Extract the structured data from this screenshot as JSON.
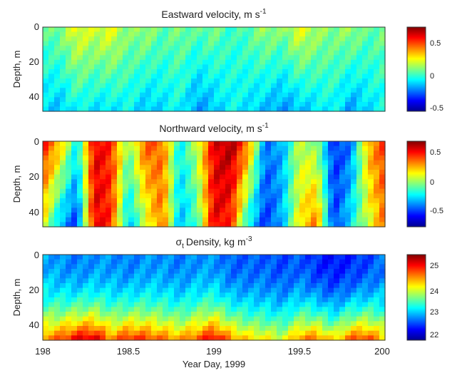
{
  "chart_data": [
    {
      "type": "heatmap",
      "title": "Eastward velocity, m s",
      "title_sup": "-1",
      "ylabel": "Depth, m",
      "ylim": [
        0,
        48
      ],
      "yticks": [
        "0",
        "20",
        "40"
      ],
      "xlim": [
        198,
        200
      ],
      "colorbar": {
        "range": [
          -0.55,
          0.75
        ],
        "ticks": [
          "0.5",
          "0",
          "-0.5"
        ],
        "tick_values": [
          0.5,
          0,
          -0.5
        ]
      },
      "colormap": "jet",
      "time": [
        198.0,
        198.1,
        198.2,
        198.3,
        198.4,
        198.5,
        198.6,
        198.7,
        198.8,
        198.9,
        199.0,
        199.1,
        199.2,
        199.3,
        199.4,
        199.5,
        199.6,
        199.7,
        199.8,
        199.9,
        200.0
      ],
      "surface_value": [
        0.05,
        0.1,
        0.25,
        0.2,
        0.25,
        0.1,
        0.15,
        0.05,
        0.1,
        0.05,
        0.1,
        0.0,
        0.05,
        0.15,
        0.1,
        0.25,
        0.15,
        0.1,
        0.15,
        0.05,
        0.1
      ],
      "bottom_value": [
        -0.1,
        -0.15,
        -0.05,
        -0.1,
        -0.1,
        -0.05,
        -0.15,
        -0.1,
        -0.05,
        -0.2,
        -0.15,
        -0.05,
        -0.1,
        -0.15,
        -0.2,
        -0.15,
        -0.1,
        -0.05,
        -0.2,
        -0.1,
        -0.05
      ]
    },
    {
      "type": "heatmap",
      "title": "Northward velocity, m s",
      "title_sup": "-1",
      "ylabel": "Depth, m",
      "ylim": [
        0,
        48
      ],
      "yticks": [
        "0",
        "20",
        "40"
      ],
      "xlim": [
        198,
        200
      ],
      "colorbar": {
        "range": [
          -0.75,
          0.75
        ],
        "ticks": [
          "0.5",
          "0",
          "-0.5"
        ],
        "tick_values": [
          0.5,
          0,
          -0.5
        ]
      },
      "colormap": "jet",
      "time": [
        198.0,
        198.1,
        198.2,
        198.3,
        198.4,
        198.5,
        198.6,
        198.7,
        198.8,
        198.9,
        199.0,
        199.1,
        199.2,
        199.3,
        199.4,
        199.5,
        199.6,
        199.7,
        199.8,
        199.9,
        200.0
      ],
      "surface_value": [
        0.55,
        0.3,
        -0.2,
        0.6,
        0.5,
        0.0,
        0.45,
        0.4,
        -0.2,
        0.1,
        0.6,
        0.7,
        0.4,
        -0.4,
        -0.3,
        0.1,
        0.0,
        -0.5,
        -0.4,
        0.3,
        0.5
      ],
      "bottom_value": [
        0.2,
        -0.3,
        -0.5,
        0.6,
        0.5,
        -0.3,
        0.1,
        0.4,
        -0.3,
        -0.1,
        0.6,
        0.5,
        -0.2,
        -0.5,
        -0.3,
        0.2,
        0.4,
        -0.5,
        -0.2,
        0.1,
        0.4
      ]
    },
    {
      "type": "heatmap",
      "title": "Density, kg m",
      "title_sigma": "σ",
      "title_sub": "t",
      "title_sup": "-3",
      "ylabel": "Depth, m",
      "xlabel": "Year Day, 1999",
      "ylim": [
        0,
        48
      ],
      "yticks": [
        "0",
        "20",
        "40"
      ],
      "xlim": [
        198,
        200
      ],
      "xticks": [
        "198",
        "198.5",
        "199",
        "199.5",
        "200"
      ],
      "xtick_values": [
        198,
        198.5,
        199,
        199.5,
        200
      ],
      "colorbar": {
        "range": [
          21.8,
          25.5
        ],
        "ticks": [
          "25",
          "24",
          "23",
          "22"
        ],
        "tick_values": [
          25,
          24,
          23,
          22
        ]
      },
      "colormap": "jet",
      "time": [
        198.0,
        198.1,
        198.2,
        198.3,
        198.4,
        198.5,
        198.6,
        198.7,
        198.8,
        198.9,
        199.0,
        199.1,
        199.2,
        199.3,
        199.4,
        199.5,
        199.6,
        199.7,
        199.8,
        199.9,
        200.0
      ],
      "surface_value": [
        22.9,
        22.8,
        22.7,
        22.8,
        22.8,
        22.7,
        22.8,
        22.8,
        22.7,
        22.8,
        22.8,
        22.6,
        22.6,
        22.6,
        22.5,
        22.6,
        22.4,
        22.3,
        22.4,
        22.5,
        22.7
      ],
      "bottom_value": [
        24.6,
        24.8,
        25.2,
        25.3,
        24.6,
        25.0,
        24.9,
        24.7,
        24.5,
        24.8,
        25.2,
        24.6,
        24.3,
        24.2,
        24.0,
        24.6,
        24.7,
        24.2,
        24.8,
        24.9,
        24.3
      ]
    }
  ]
}
